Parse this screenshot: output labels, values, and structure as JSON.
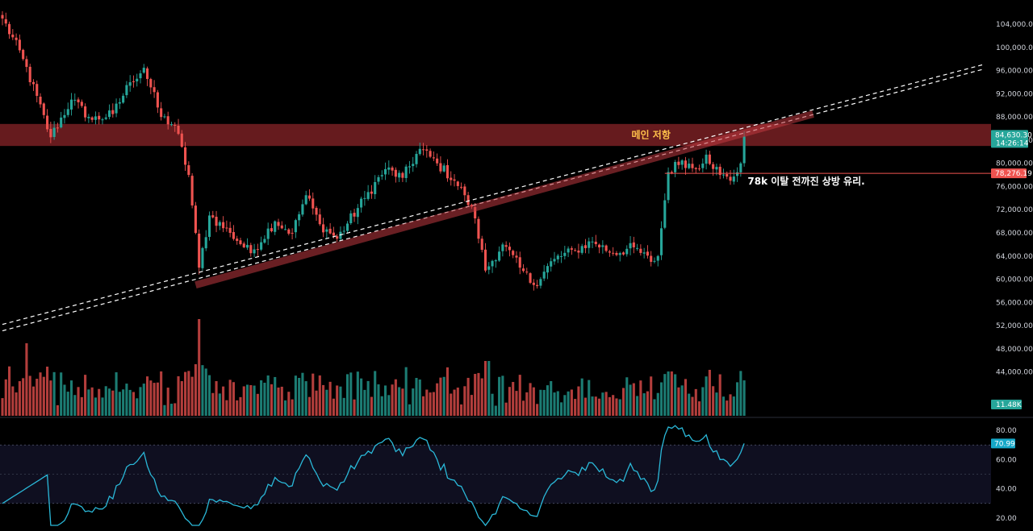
{
  "chart_data": {
    "type": "candlestick",
    "price_axis": {
      "ticks": [
        "104,000.00",
        "100,000.00",
        "96,000.00",
        "92,000.00",
        "88,000.00",
        "84,000.00",
        "80,000.00",
        "76,000.00",
        "72,000.00",
        "68,000.00",
        "64,000.00",
        "60,000.00",
        "56,000.00",
        "52,000.00",
        "48,000.00",
        "44,000.00"
      ],
      "range": [
        41300,
        106800
      ]
    },
    "rsi_axis": {
      "ticks": [
        "80.00",
        "60.00",
        "40.00",
        "20.00"
      ],
      "range": [
        15,
        85
      ],
      "band": [
        30,
        70
      ]
    },
    "price_keypoints": [
      {
        "t": 0,
        "p": 105000
      },
      {
        "t": 6,
        "p": 98000
      },
      {
        "t": 14,
        "p": 84500
      },
      {
        "t": 20,
        "p": 91000
      },
      {
        "t": 26,
        "p": 87500
      },
      {
        "t": 32,
        "p": 88500
      },
      {
        "t": 37,
        "p": 94000
      },
      {
        "t": 41,
        "p": 96500
      },
      {
        "t": 46,
        "p": 88000
      },
      {
        "t": 50,
        "p": 86500
      },
      {
        "t": 54,
        "p": 78000
      },
      {
        "t": 57,
        "p": 62000
      },
      {
        "t": 60,
        "p": 71000
      },
      {
        "t": 66,
        "p": 68000
      },
      {
        "t": 72,
        "p": 64500
      },
      {
        "t": 79,
        "p": 70000
      },
      {
        "t": 84,
        "p": 68000
      },
      {
        "t": 88,
        "p": 74500
      },
      {
        "t": 92,
        "p": 69500
      },
      {
        "t": 97,
        "p": 67000
      },
      {
        "t": 105,
        "p": 74000
      },
      {
        "t": 111,
        "p": 79000
      },
      {
        "t": 116,
        "p": 77500
      },
      {
        "t": 121,
        "p": 82500
      },
      {
        "t": 126,
        "p": 80000
      },
      {
        "t": 131,
        "p": 77000
      },
      {
        "t": 134,
        "p": 74500
      },
      {
        "t": 137,
        "p": 70500
      },
      {
        "t": 140,
        "p": 61500
      },
      {
        "t": 145,
        "p": 66000
      },
      {
        "t": 150,
        "p": 62000
      },
      {
        "t": 154,
        "p": 59000
      },
      {
        "t": 160,
        "p": 63500
      },
      {
        "t": 166,
        "p": 65000
      },
      {
        "t": 171,
        "p": 66500
      },
      {
        "t": 177,
        "p": 64500
      },
      {
        "t": 183,
        "p": 65500
      },
      {
        "t": 188,
        "p": 63000
      },
      {
        "t": 190,
        "p": 64000
      },
      {
        "t": 193,
        "p": 78500
      },
      {
        "t": 197,
        "p": 80500
      },
      {
        "t": 201,
        "p": 79000
      },
      {
        "t": 204,
        "p": 81500
      },
      {
        "t": 208,
        "p": 78000
      },
      {
        "t": 211,
        "p": 77000
      },
      {
        "t": 214,
        "p": 80000
      },
      {
        "t": 215,
        "p": 84630
      }
    ],
    "last_price": "84,630.30",
    "countdown": "14:26:14",
    "level_line": {
      "price": 78276.19,
      "label": "78,276.19"
    },
    "volume_label": "11.48K",
    "rsi_label": "70.99",
    "resistance_zone": {
      "top": 86800,
      "bottom": 83000,
      "label": "메인 저항"
    },
    "trendline": {
      "p1": {
        "t": 56,
        "p": 59000
      },
      "p2": {
        "t": 235,
        "p": 88500
      }
    },
    "dashed_lines": [
      {
        "p1": {
          "t": 0,
          "p": 52200
        },
        "p2": {
          "t": 284,
          "p": 97000
        }
      },
      {
        "p1": {
          "t": 0,
          "p": 51100
        },
        "p2": {
          "t": 284,
          "p": 96200
        }
      }
    ],
    "annotation": "78k 이탈 전까진 상방 유리.",
    "colors": {
      "up": "#26a69a",
      "down": "#ef5350",
      "rsi": "#2ab8d8",
      "tag_up": "#26a69a",
      "tag_down": "#ef5350",
      "tag_rsi": "#16a8c8",
      "zone": "#6b1c20",
      "label_gold": "#ffc14a"
    }
  }
}
